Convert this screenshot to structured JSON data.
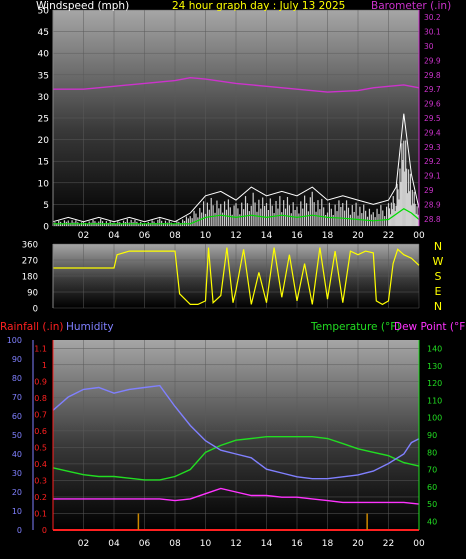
{
  "colors": {
    "background": "#000000",
    "plot_top": "#9a9a9a",
    "plot_bottom": "#000000",
    "windspeed": "#ffffff",
    "windgust_fill": "#d0d0d0",
    "windavg": "#00dd00",
    "barometer": "#cc33cc",
    "wind_direction": "#ffff00",
    "rainfall": "#ff2020",
    "humidity": "#8080ff",
    "temperature": "#22dd22",
    "dewpoint": "#ff33ff",
    "title": "#ffff00",
    "tick": "#ffffff"
  },
  "chart_data": [
    {
      "type": "line",
      "name": "wind-barometer",
      "title": "24 hour graph day : July 13 2025",
      "left_axis_label": "Windspeed (mph)",
      "right_axis_label": "Barometer (.in)",
      "x_ticks": [
        "02",
        "04",
        "06",
        "08",
        "10",
        "12",
        "14",
        "16",
        "18",
        "20",
        "22",
        "00"
      ],
      "x_range": [
        0,
        24
      ],
      "left_ticks": [
        0,
        5,
        10,
        15,
        20,
        25,
        30,
        35,
        40,
        45,
        50
      ],
      "left_range": [
        0,
        50
      ],
      "right_ticks": [
        "28.8",
        "28.9",
        "29",
        "29.1",
        "29.2",
        "29.3",
        "29.4",
        "29.5",
        "29.6",
        "29.7",
        "29.8",
        "29.9",
        "30",
        "30.1",
        "30.2"
      ],
      "right_range": [
        28.75,
        30.25
      ],
      "barometer": [
        [
          0,
          29.7
        ],
        [
          2,
          29.7
        ],
        [
          4,
          29.72
        ],
        [
          6,
          29.74
        ],
        [
          8,
          29.76
        ],
        [
          9,
          29.78
        ],
        [
          10,
          29.77
        ],
        [
          12,
          29.74
        ],
        [
          14,
          29.72
        ],
        [
          16,
          29.7
        ],
        [
          18,
          29.68
        ],
        [
          20,
          29.69
        ],
        [
          21,
          29.71
        ],
        [
          22,
          29.72
        ],
        [
          23,
          29.73
        ],
        [
          24,
          29.71
        ]
      ],
      "wind_gust_envelope": [
        [
          0,
          1
        ],
        [
          1,
          2
        ],
        [
          2,
          1
        ],
        [
          3,
          2
        ],
        [
          4,
          1
        ],
        [
          5,
          2
        ],
        [
          6,
          1
        ],
        [
          7,
          2
        ],
        [
          8,
          1
        ],
        [
          9,
          3
        ],
        [
          10,
          7
        ],
        [
          11,
          8
        ],
        [
          12,
          6
        ],
        [
          13,
          9
        ],
        [
          14,
          7
        ],
        [
          15,
          8
        ],
        [
          16,
          7
        ],
        [
          17,
          9
        ],
        [
          18,
          6
        ],
        [
          19,
          7
        ],
        [
          20,
          6
        ],
        [
          21,
          5
        ],
        [
          22,
          6
        ],
        [
          22.5,
          9
        ],
        [
          23,
          26
        ],
        [
          23.5,
          12
        ],
        [
          24,
          4
        ]
      ],
      "wind_avg": [
        [
          0,
          0.5
        ],
        [
          2,
          0.5
        ],
        [
          4,
          0.5
        ],
        [
          6,
          0.5
        ],
        [
          8,
          0.5
        ],
        [
          9,
          0.5
        ],
        [
          10,
          2
        ],
        [
          11,
          2.5
        ],
        [
          12,
          2
        ],
        [
          13,
          2.5
        ],
        [
          14,
          2
        ],
        [
          15,
          2.5
        ],
        [
          16,
          2
        ],
        [
          17,
          2.5
        ],
        [
          18,
          2
        ],
        [
          19,
          1.8
        ],
        [
          20,
          1.5
        ],
        [
          21,
          1.2
        ],
        [
          22,
          1.5
        ],
        [
          23,
          4
        ],
        [
          23.5,
          3
        ],
        [
          24,
          1.5
        ]
      ]
    },
    {
      "type": "line",
      "name": "wind-direction",
      "x_range": [
        0,
        24
      ],
      "left_ticks": [
        0,
        90,
        180,
        270,
        360
      ],
      "right_labels": [
        "N",
        "W",
        "S",
        "E",
        "N"
      ],
      "y_range": [
        0,
        360
      ],
      "direction": [
        [
          0,
          225
        ],
        [
          1,
          225
        ],
        [
          2,
          225
        ],
        [
          3,
          225
        ],
        [
          4,
          225
        ],
        [
          4.2,
          300
        ],
        [
          5,
          320
        ],
        [
          6,
          320
        ],
        [
          7,
          320
        ],
        [
          8,
          320
        ],
        [
          8.3,
          80
        ],
        [
          9,
          20
        ],
        [
          9.5,
          20
        ],
        [
          10,
          40
        ],
        [
          10.2,
          340
        ],
        [
          10.5,
          30
        ],
        [
          11,
          70
        ],
        [
          11.4,
          340
        ],
        [
          11.8,
          30
        ],
        [
          12,
          100
        ],
        [
          12.5,
          330
        ],
        [
          13,
          20
        ],
        [
          13.5,
          200
        ],
        [
          14,
          30
        ],
        [
          14.5,
          340
        ],
        [
          15,
          60
        ],
        [
          15.5,
          300
        ],
        [
          16,
          40
        ],
        [
          16.5,
          250
        ],
        [
          17,
          20
        ],
        [
          17.5,
          340
        ],
        [
          18,
          50
        ],
        [
          18.5,
          320
        ],
        [
          19,
          30
        ],
        [
          19.5,
          320
        ],
        [
          20,
          300
        ],
        [
          20.5,
          320
        ],
        [
          21,
          310
        ],
        [
          21.2,
          40
        ],
        [
          21.6,
          20
        ],
        [
          22,
          40
        ],
        [
          22.3,
          250
        ],
        [
          22.6,
          330
        ],
        [
          23,
          300
        ],
        [
          23.5,
          280
        ],
        [
          24,
          240
        ]
      ]
    },
    {
      "type": "line",
      "name": "rain-humidity-temperature",
      "left1_label": "Rainfall (.in)",
      "left2_label": "Humidity",
      "right1_label": "Temperature (°F)",
      "right2_label": "Dew Point (°F)",
      "x_range": [
        0,
        24
      ],
      "rain_ticks": [
        "0",
        "0.1",
        "0.2",
        "0.3",
        "0.4",
        "0.5",
        "0.6",
        "0.7",
        "0.8",
        "0.9",
        "1",
        "1.1"
      ],
      "rain_range": [
        0,
        1.15
      ],
      "humidity_ticks": [
        0,
        10,
        20,
        30,
        40,
        50,
        60,
        70,
        80,
        90,
        100
      ],
      "humidity_range": [
        0,
        100
      ],
      "temp_ticks": [
        40,
        50,
        60,
        70,
        80,
        90,
        100,
        110,
        120,
        130,
        140
      ],
      "temp_range": [
        35,
        145
      ],
      "humidity": [
        [
          0,
          63
        ],
        [
          1,
          70
        ],
        [
          2,
          74
        ],
        [
          3,
          75
        ],
        [
          4,
          72
        ],
        [
          5,
          74
        ],
        [
          6,
          75
        ],
        [
          7,
          76
        ],
        [
          8,
          65
        ],
        [
          9,
          55
        ],
        [
          10,
          47
        ],
        [
          11,
          42
        ],
        [
          12,
          40
        ],
        [
          13,
          38
        ],
        [
          14,
          32
        ],
        [
          15,
          30
        ],
        [
          16,
          28
        ],
        [
          17,
          27
        ],
        [
          18,
          27
        ],
        [
          19,
          28
        ],
        [
          20,
          29
        ],
        [
          21,
          31
        ],
        [
          22,
          35
        ],
        [
          23,
          40
        ],
        [
          23.5,
          46
        ],
        [
          24,
          48
        ]
      ],
      "temperature": [
        [
          0,
          71
        ],
        [
          1,
          69
        ],
        [
          2,
          67
        ],
        [
          3,
          66
        ],
        [
          4,
          66
        ],
        [
          5,
          65
        ],
        [
          6,
          64
        ],
        [
          7,
          64
        ],
        [
          8,
          66
        ],
        [
          9,
          70
        ],
        [
          10,
          80
        ],
        [
          11,
          84
        ],
        [
          12,
          87
        ],
        [
          13,
          88
        ],
        [
          14,
          89
        ],
        [
          15,
          89
        ],
        [
          16,
          89
        ],
        [
          17,
          89
        ],
        [
          18,
          88
        ],
        [
          19,
          85
        ],
        [
          20,
          82
        ],
        [
          21,
          80
        ],
        [
          22,
          78
        ],
        [
          23,
          74
        ],
        [
          24,
          72
        ]
      ],
      "dewpoint": [
        [
          0,
          53
        ],
        [
          2,
          53
        ],
        [
          4,
          53
        ],
        [
          6,
          53
        ],
        [
          7,
          53
        ],
        [
          8,
          52
        ],
        [
          9,
          53
        ],
        [
          10,
          56
        ],
        [
          11,
          59
        ],
        [
          12,
          57
        ],
        [
          13,
          55
        ],
        [
          14,
          55
        ],
        [
          15,
          54
        ],
        [
          16,
          54
        ],
        [
          17,
          53
        ],
        [
          18,
          52
        ],
        [
          19,
          51
        ],
        [
          20,
          51
        ],
        [
          21,
          51
        ],
        [
          22,
          51
        ],
        [
          23,
          51
        ],
        [
          24,
          50
        ]
      ],
      "rain_marks": [
        [
          5.6,
          0.1
        ],
        [
          20.6,
          0.1
        ]
      ]
    }
  ]
}
